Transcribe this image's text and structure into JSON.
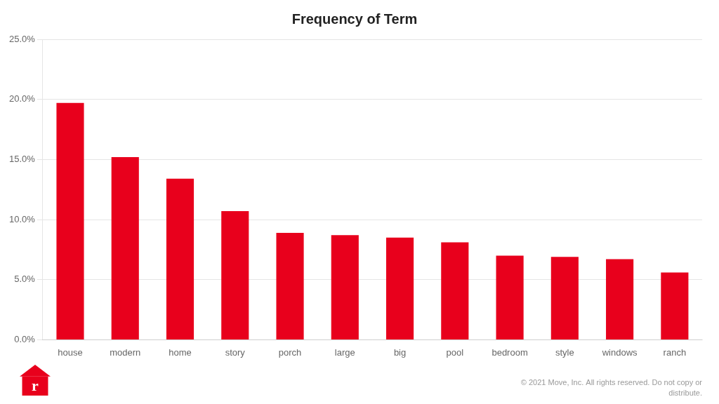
{
  "chart_data": {
    "type": "bar",
    "title": "Frequency of Term",
    "categories": [
      "house",
      "modern",
      "home",
      "story",
      "porch",
      "large",
      "big",
      "pool",
      "bedroom",
      "style",
      "windows",
      "ranch"
    ],
    "values": [
      0.197,
      0.152,
      0.134,
      0.107,
      0.089,
      0.087,
      0.085,
      0.081,
      0.07,
      0.069,
      0.067,
      0.056
    ],
    "color": "#e8001c",
    "ylim": [
      0,
      0.25
    ],
    "yticks": [
      {
        "value": 0,
        "label": "0.0%"
      },
      {
        "value": 0.05,
        "label": "5.0%"
      },
      {
        "value": 0.1,
        "label": "10.0%"
      },
      {
        "value": 0.15,
        "label": "15.0%"
      },
      {
        "value": 0.2,
        "label": "20.0%"
      },
      {
        "value": 0.25,
        "label": "25.0%"
      }
    ],
    "grid": true,
    "annotations": [
      "© 2021 Move, Inc. All rights reserved. Do not copy or\ndistribute.",
      "r"
    ]
  }
}
